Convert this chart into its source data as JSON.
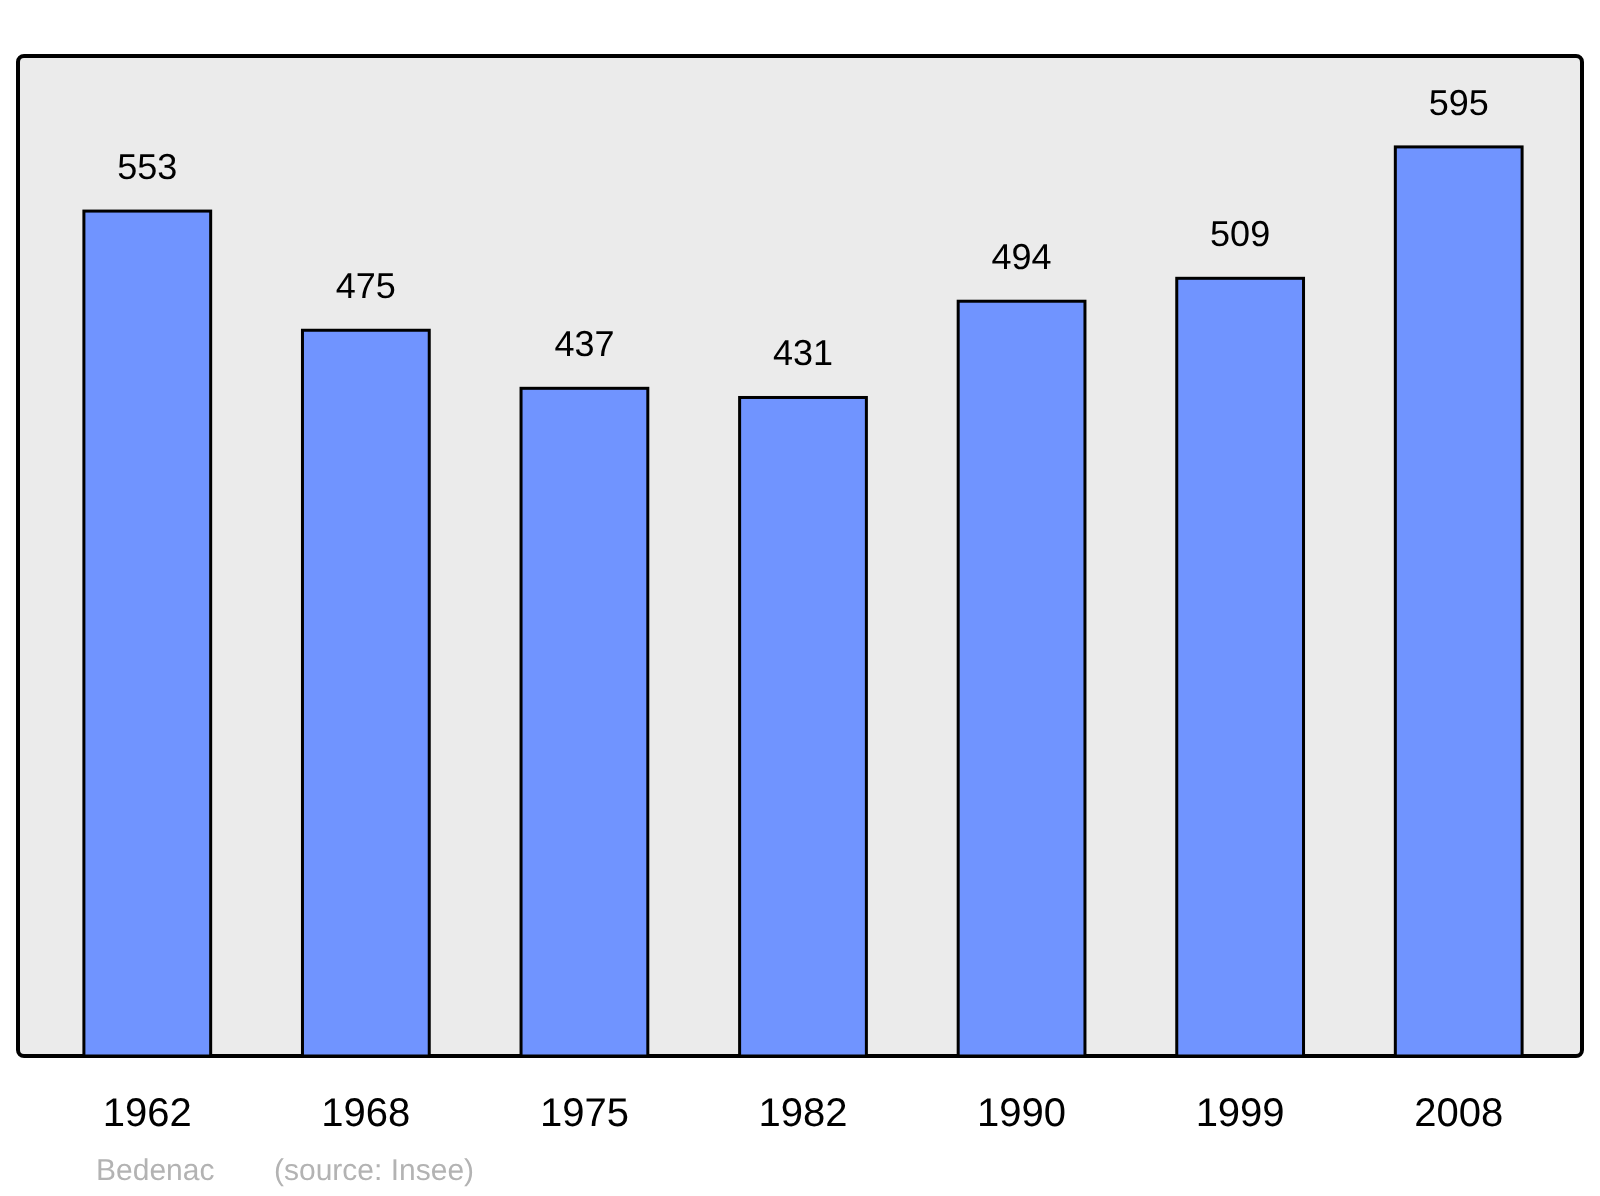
{
  "chart_data": {
    "type": "bar",
    "categories": [
      "1962",
      "1968",
      "1975",
      "1982",
      "1990",
      "1999",
      "2008"
    ],
    "values": [
      553,
      475,
      437,
      431,
      494,
      509,
      595
    ],
    "color": "#7094ff",
    "data_labels": true,
    "grid": false,
    "annotations": [
      "Bedenac",
      "(source: Insee)"
    ]
  }
}
